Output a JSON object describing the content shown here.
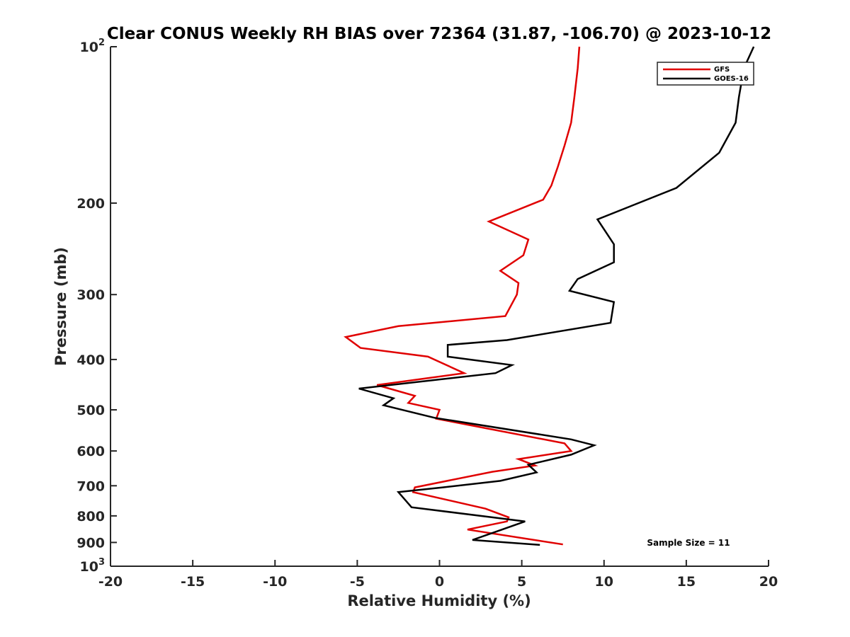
{
  "chart_data": {
    "type": "line",
    "title": "Clear CONUS Weekly RH BIAS over 72364 (31.87, -106.70) @ 2023-10-12",
    "xlabel": "Relative Humidity (%)",
    "ylabel": "Pressure (mb)",
    "xlim": [
      -20,
      20
    ],
    "ylim": [
      100,
      1000
    ],
    "y_scale": "log",
    "y_reversed": true,
    "x_ticks": [
      "-20",
      "-15",
      "-10",
      "-5",
      "0",
      "5",
      "10",
      "15",
      "20"
    ],
    "y_ticks": [
      {
        "value": 100,
        "base": "10",
        "exp": "2"
      },
      {
        "value": 200,
        "label": "200"
      },
      {
        "value": 300,
        "label": "300"
      },
      {
        "value": 400,
        "label": "400"
      },
      {
        "value": 500,
        "label": "500"
      },
      {
        "value": 600,
        "label": "600"
      },
      {
        "value": 700,
        "label": "700"
      },
      {
        "value": 800,
        "label": "800"
      },
      {
        "value": 900,
        "label": "900"
      },
      {
        "value": 1000,
        "base": "10",
        "exp": "3"
      }
    ],
    "grid": false,
    "legend_position": "top-right",
    "annotation": "Sample Size = 11",
    "series": [
      {
        "name": "GFS",
        "color": "#e00000",
        "x": [
          8.5,
          8.4,
          8.2,
          8.0,
          7.6,
          7.2,
          6.8,
          6.3,
          3.0,
          5.4,
          5.1,
          3.7,
          4.8,
          4.7,
          4.0,
          -2.5,
          -5.7,
          -4.8,
          -0.7,
          1.5,
          -3.8,
          -1.5,
          -1.9,
          0.0,
          -0.2,
          7.6,
          8.0,
          4.8,
          5.8,
          3.2,
          -1.5,
          -1.6,
          2.8,
          4.2,
          4.1,
          1.7,
          7.5
        ],
        "y": [
          100,
          110,
          125,
          140,
          155,
          170,
          185,
          197,
          217,
          235,
          252,
          270,
          285,
          300,
          330,
          345,
          362,
          380,
          395,
          425,
          448,
          470,
          485,
          500,
          520,
          580,
          600,
          622,
          640,
          658,
          705,
          720,
          775,
          805,
          820,
          850,
          908
        ]
      },
      {
        "name": "GOES-16",
        "color": "#000000",
        "x": [
          19.1,
          18.5,
          18.2,
          18.0,
          17.0,
          14.4,
          9.6,
          10.6,
          10.6,
          8.4,
          7.9,
          10.6,
          10.4,
          4.1,
          0.5,
          0.5,
          4.4,
          3.4,
          -4.9,
          -2.8,
          -3.4,
          -0.3,
          8.0,
          9.4,
          8.0,
          5.4,
          5.9,
          3.7,
          0.2,
          -2.5,
          -1.7,
          3.2,
          5.2,
          3.8,
          2.0,
          6.1
        ],
        "y": [
          100,
          110,
          125,
          140,
          160,
          187,
          215,
          240,
          260,
          280,
          295,
          310,
          340,
          367,
          375,
          395,
          410,
          425,
          455,
          475,
          490,
          518,
          570,
          585,
          610,
          638,
          660,
          685,
          705,
          720,
          770,
          805,
          820,
          850,
          890,
          910
        ]
      }
    ]
  }
}
